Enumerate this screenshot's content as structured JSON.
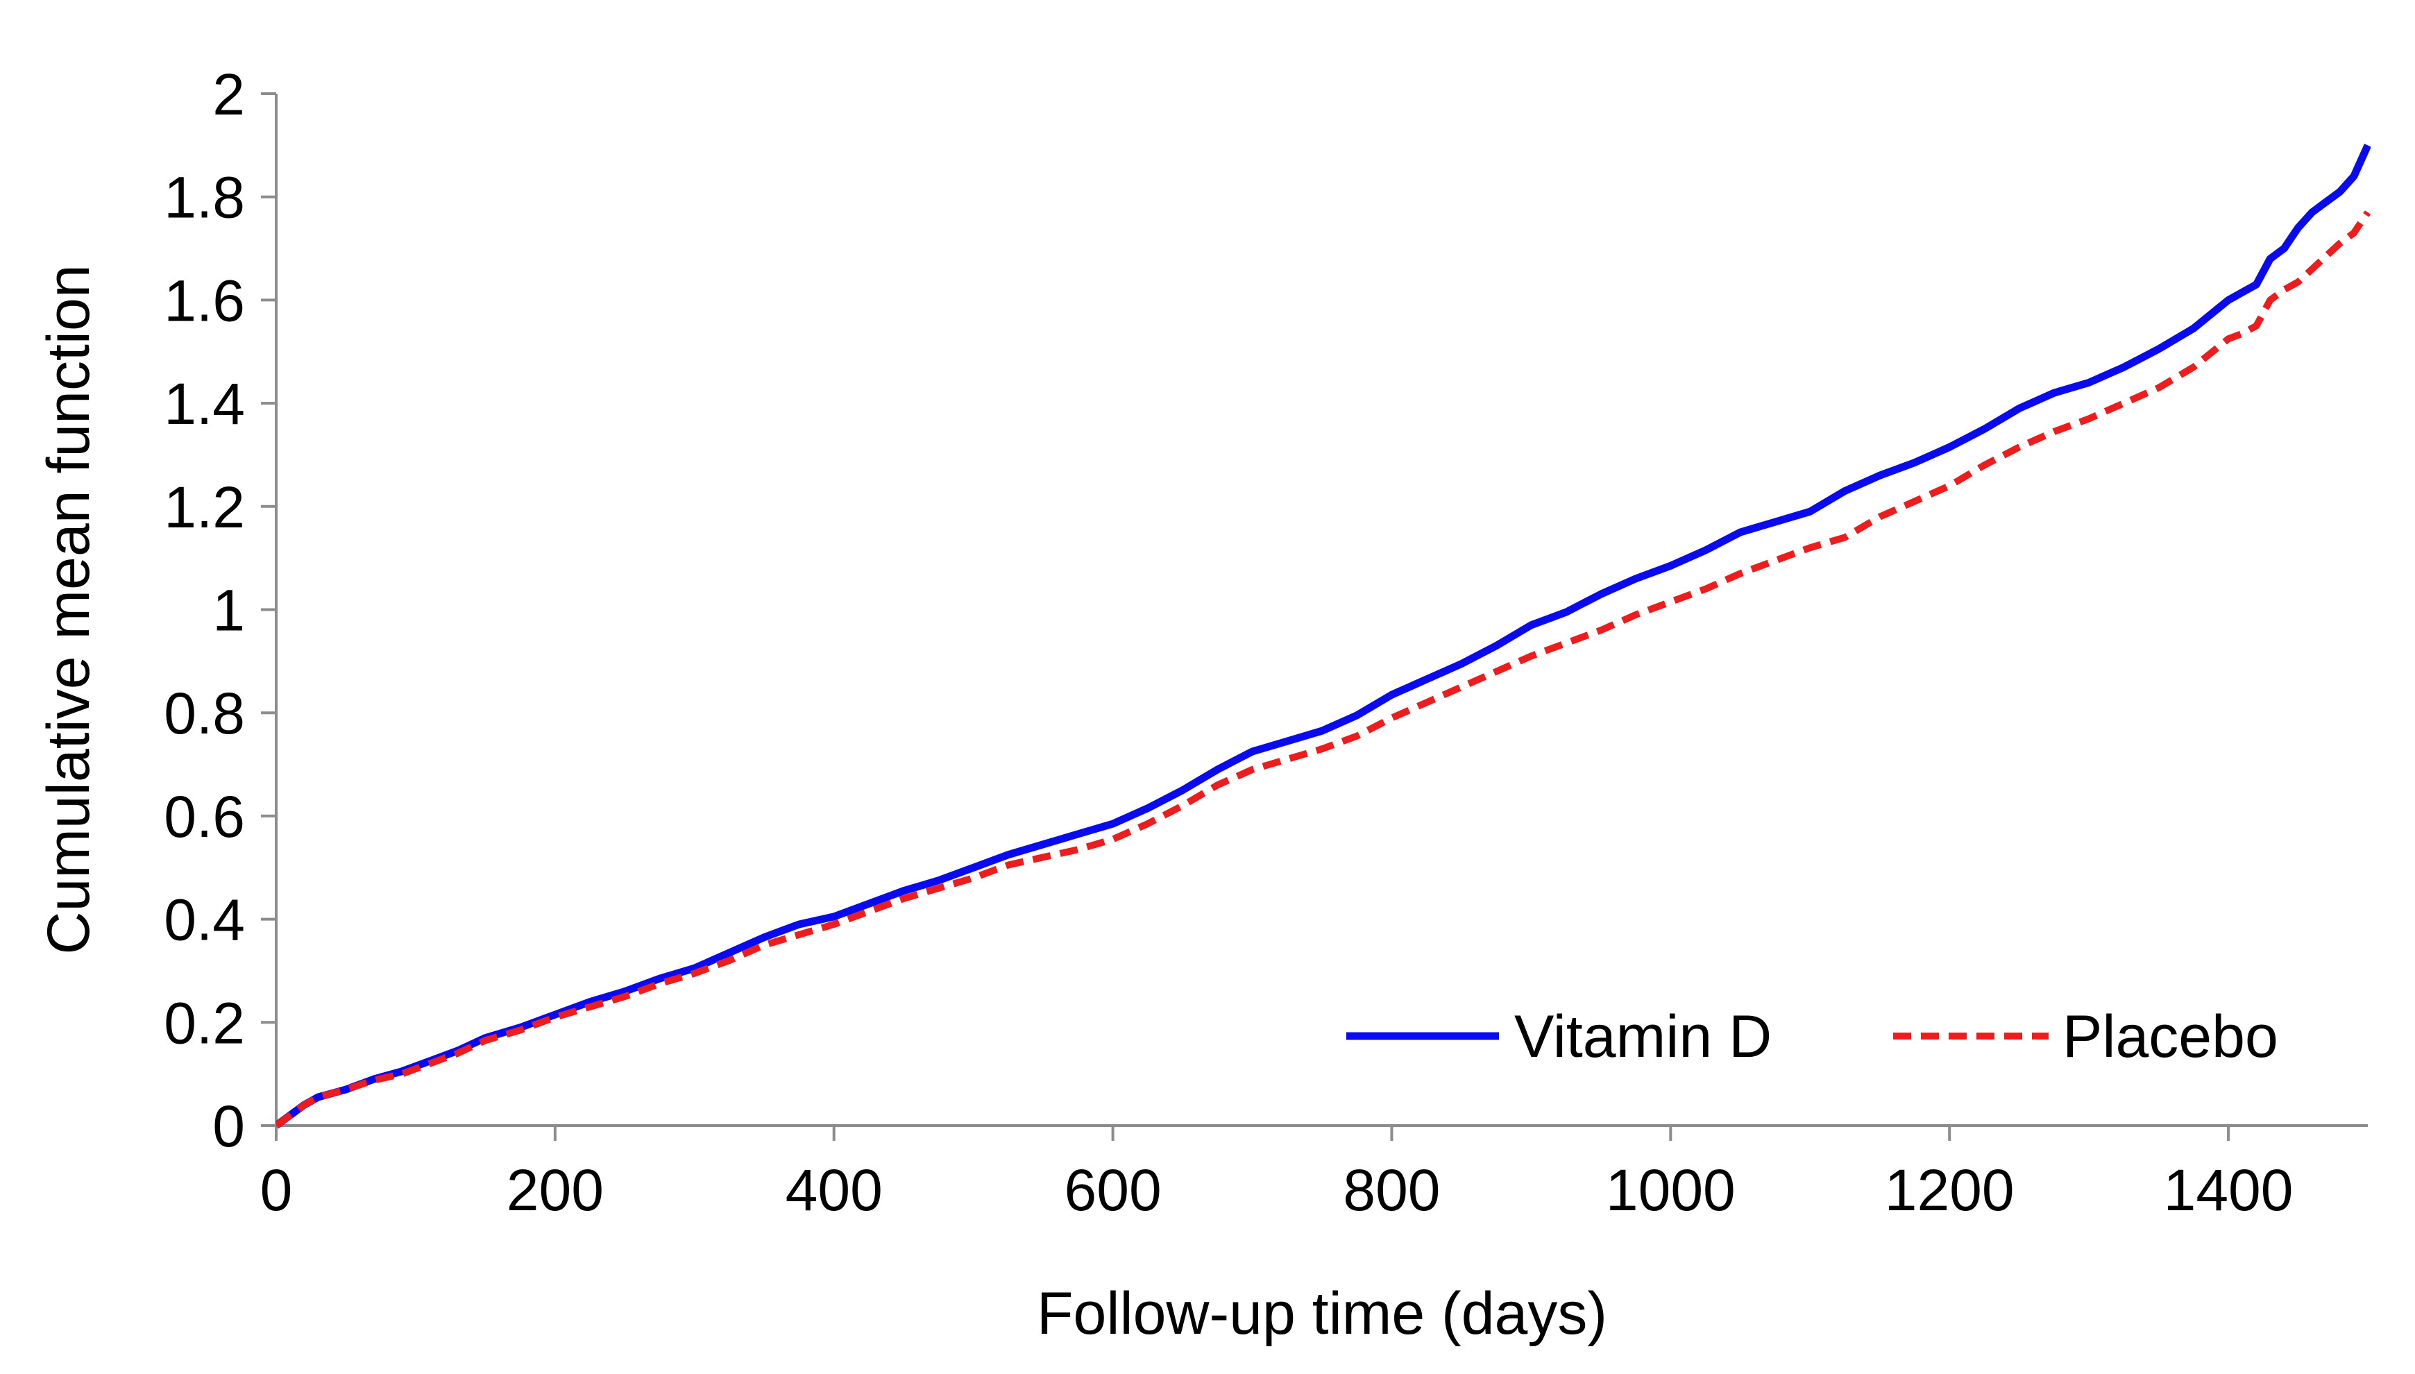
{
  "chart_data": {
    "type": "line",
    "title": "",
    "xlabel": "Follow-up time (days)",
    "ylabel": "Cumulative mean function",
    "xlim": [
      0,
      1500
    ],
    "ylim": [
      0,
      2
    ],
    "xticks": [
      0,
      200,
      400,
      600,
      800,
      1000,
      1200,
      1400
    ],
    "yticks": [
      0,
      0.2,
      0.4,
      0.6,
      0.8,
      1,
      1.2,
      1.4,
      1.6,
      1.8,
      2
    ],
    "xtick_labels": [
      "0",
      "200",
      "400",
      "600",
      "800",
      "1000",
      "1200",
      "1400"
    ],
    "ytick_labels": [
      "0",
      "0.2",
      "0.4",
      "0.6",
      "0.8",
      "1",
      "1.2",
      "1.4",
      "1.6",
      "1.8",
      "2"
    ],
    "grid": false,
    "legend": {
      "placement": "bottom-right",
      "entries": [
        "Vitamin D",
        "Placebo"
      ]
    },
    "series": [
      {
        "name": "Vitamin D",
        "color": "#0a0af0",
        "style": "solid",
        "x": [
          0,
          10,
          20,
          30,
          50,
          70,
          90,
          110,
          130,
          150,
          175,
          200,
          225,
          250,
          275,
          300,
          325,
          350,
          375,
          400,
          425,
          450,
          475,
          500,
          525,
          550,
          575,
          600,
          625,
          650,
          675,
          700,
          725,
          750,
          775,
          800,
          825,
          850,
          875,
          900,
          925,
          950,
          975,
          1000,
          1025,
          1050,
          1075,
          1100,
          1125,
          1150,
          1175,
          1200,
          1225,
          1250,
          1275,
          1300,
          1325,
          1350,
          1375,
          1400,
          1410,
          1420,
          1430,
          1440,
          1450,
          1460,
          1470,
          1480,
          1490,
          1500
        ],
        "values": [
          0,
          0.02,
          0.04,
          0.055,
          0.07,
          0.09,
          0.105,
          0.125,
          0.145,
          0.17,
          0.19,
          0.215,
          0.24,
          0.26,
          0.285,
          0.305,
          0.335,
          0.365,
          0.39,
          0.405,
          0.43,
          0.455,
          0.475,
          0.5,
          0.525,
          0.545,
          0.565,
          0.585,
          0.615,
          0.65,
          0.69,
          0.725,
          0.745,
          0.765,
          0.795,
          0.835,
          0.865,
          0.895,
          0.93,
          0.97,
          0.995,
          1.03,
          1.06,
          1.085,
          1.115,
          1.15,
          1.17,
          1.19,
          1.23,
          1.26,
          1.285,
          1.315,
          1.35,
          1.39,
          1.42,
          1.44,
          1.47,
          1.505,
          1.545,
          1.6,
          1.615,
          1.63,
          1.68,
          1.7,
          1.74,
          1.77,
          1.79,
          1.81,
          1.84,
          1.9
        ]
      },
      {
        "name": "Placebo",
        "color": "#ee1c1c",
        "style": "dashed",
        "x": [
          0,
          10,
          20,
          30,
          50,
          70,
          90,
          110,
          130,
          150,
          175,
          200,
          225,
          250,
          275,
          300,
          325,
          350,
          375,
          400,
          425,
          450,
          475,
          500,
          525,
          550,
          575,
          600,
          625,
          650,
          675,
          700,
          725,
          750,
          775,
          800,
          825,
          850,
          875,
          900,
          925,
          950,
          975,
          1000,
          1025,
          1050,
          1075,
          1100,
          1125,
          1150,
          1175,
          1200,
          1225,
          1250,
          1275,
          1300,
          1325,
          1350,
          1375,
          1400,
          1410,
          1420,
          1430,
          1440,
          1450,
          1460,
          1470,
          1480,
          1490,
          1500
        ],
        "values": [
          0,
          0.02,
          0.04,
          0.055,
          0.07,
          0.088,
          0.1,
          0.12,
          0.14,
          0.165,
          0.185,
          0.21,
          0.23,
          0.25,
          0.275,
          0.295,
          0.32,
          0.35,
          0.37,
          0.39,
          0.415,
          0.44,
          0.46,
          0.48,
          0.505,
          0.52,
          0.535,
          0.555,
          0.585,
          0.62,
          0.66,
          0.69,
          0.71,
          0.73,
          0.755,
          0.79,
          0.82,
          0.85,
          0.88,
          0.91,
          0.935,
          0.96,
          0.99,
          1.015,
          1.04,
          1.07,
          1.095,
          1.12,
          1.14,
          1.18,
          1.21,
          1.24,
          1.28,
          1.315,
          1.345,
          1.37,
          1.4,
          1.43,
          1.47,
          1.525,
          1.535,
          1.55,
          1.6,
          1.62,
          1.635,
          1.66,
          1.685,
          1.71,
          1.73,
          1.77
        ]
      }
    ]
  }
}
